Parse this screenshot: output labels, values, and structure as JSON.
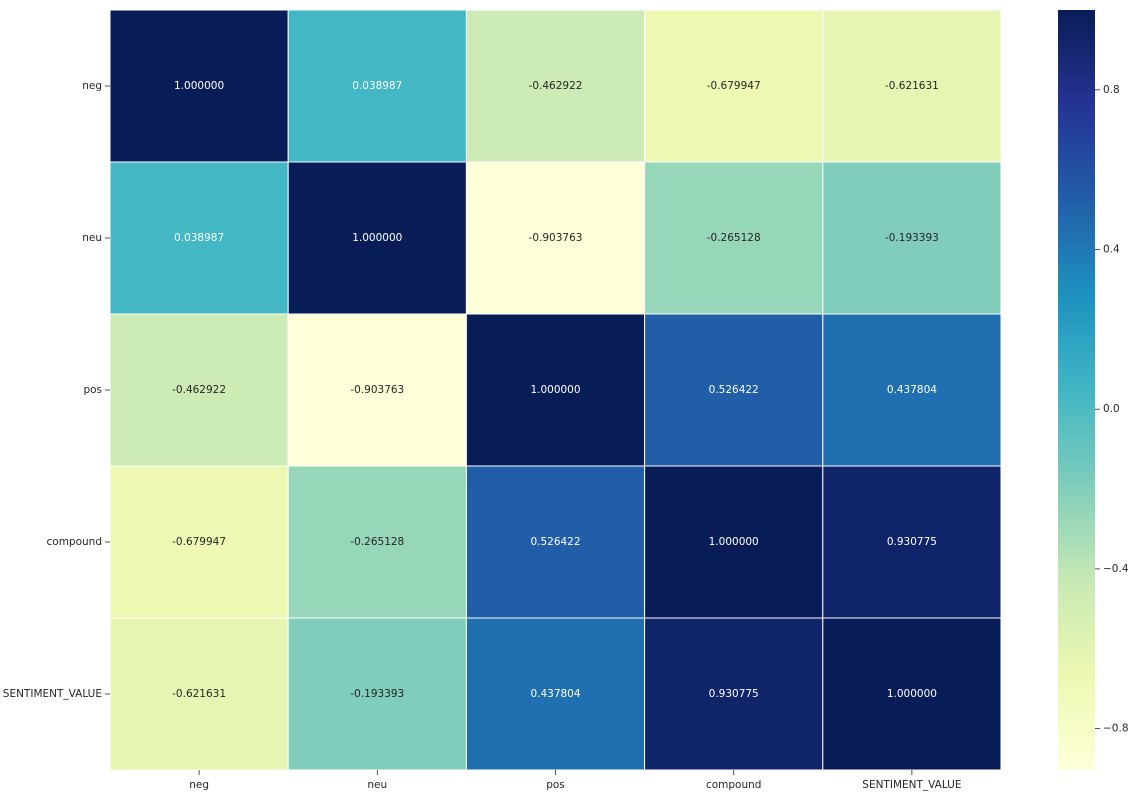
{
  "chart_data": {
    "type": "heatmap",
    "x_labels": [
      "neg",
      "neu",
      "pos",
      "compound",
      "SENTIMENT_VALUE"
    ],
    "y_labels": [
      "neg",
      "neu",
      "pos",
      "compound",
      "SENTIMENT_VALUE"
    ],
    "values": [
      [
        1.0,
        0.038987,
        -0.462922,
        -0.679947,
        -0.621631
      ],
      [
        0.038987,
        1.0,
        -0.903763,
        -0.265128,
        -0.193393
      ],
      [
        -0.462922,
        -0.903763,
        1.0,
        0.526422,
        0.437804
      ],
      [
        -0.679947,
        -0.265128,
        0.526422,
        1.0,
        0.930775
      ],
      [
        -0.621631,
        -0.193393,
        0.437804,
        0.930775,
        1.0
      ]
    ],
    "value_labels": [
      [
        "1.000000",
        "0.038987",
        "-0.462922",
        "-0.679947",
        "-0.621631"
      ],
      [
        "0.038987",
        "1.000000",
        "-0.903763",
        "-0.265128",
        "-0.193393"
      ],
      [
        "-0.462922",
        "-0.903763",
        "1.000000",
        "0.526422",
        "0.437804"
      ],
      [
        "-0.679947",
        "-0.265128",
        "0.526422",
        "1.000000",
        "0.930775"
      ],
      [
        "-0.621631",
        "-0.193393",
        "0.437804",
        "0.930775",
        "1.000000"
      ]
    ],
    "colormap": "YlGnBu",
    "colorbar": {
      "vmin": -0.903763,
      "vmax": 1.0,
      "ticks": [
        0.8,
        0.4,
        0.0,
        -0.4,
        -0.8
      ],
      "tick_labels": [
        "0.8",
        "0.4",
        "0.0",
        "−0.4",
        "−0.8"
      ]
    },
    "cell_border_color": "#ffffff",
    "annotation_colors": {
      "dark_bg": "#ffffff",
      "light_bg": "#262626"
    },
    "title": "",
    "xlabel": "",
    "ylabel": ""
  }
}
